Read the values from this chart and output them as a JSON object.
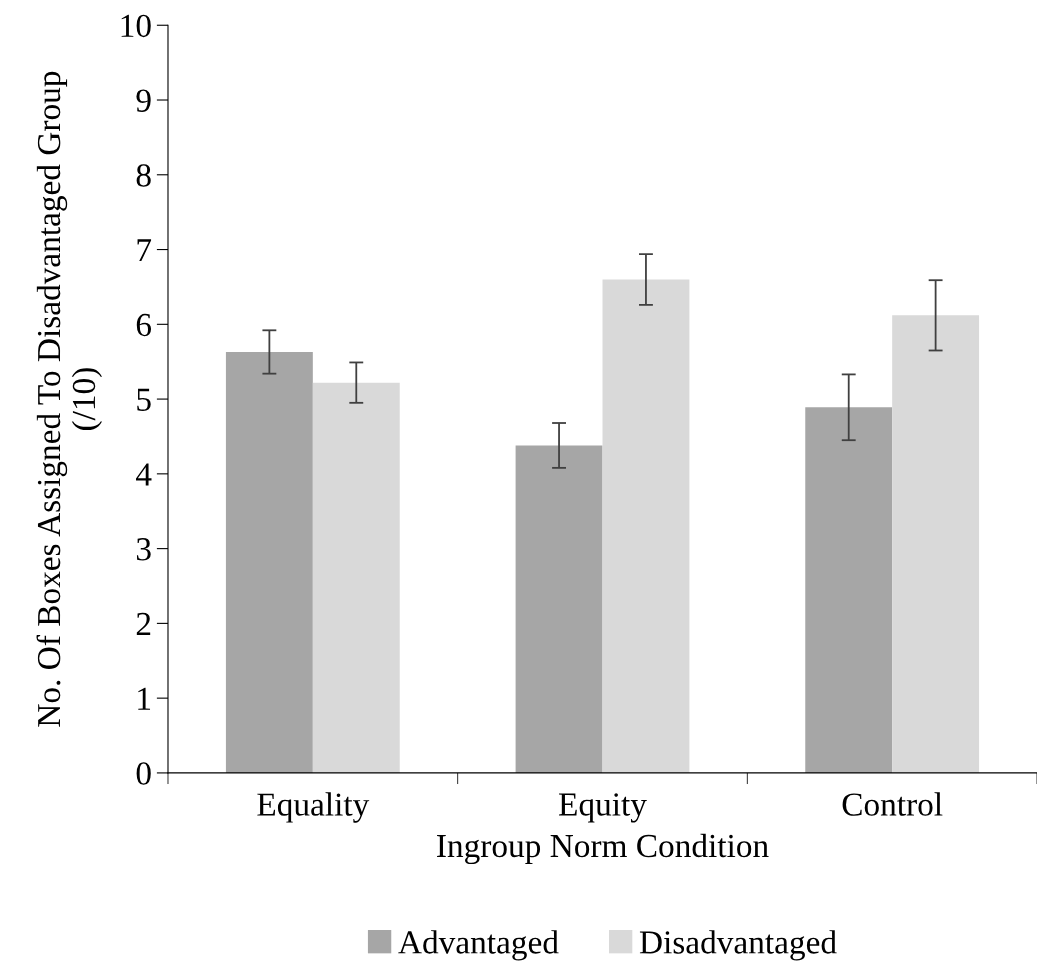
{
  "chart_data": {
    "type": "bar",
    "xlabel": "Ingroup Norm Condition",
    "ylabel": "No. Of Boxes Assigned To Disadvantaged Group\n(/10)",
    "categories": [
      "Equality",
      "Equity",
      "Control"
    ],
    "series": [
      {
        "name": "Advantaged",
        "color": "#a6a6a6",
        "values": [
          5.63,
          4.38,
          4.89
        ],
        "errors": [
          0.29,
          0.3,
          0.44
        ]
      },
      {
        "name": "Disadvantaged",
        "color": "#d9d9d9",
        "values": [
          5.22,
          6.6,
          6.12
        ],
        "errors": [
          0.27,
          0.34,
          0.47
        ]
      }
    ],
    "ylim": [
      0,
      10
    ],
    "yticks": [
      0,
      1,
      2,
      3,
      4,
      5,
      6,
      7,
      8,
      9,
      10
    ],
    "grid": false,
    "legend": "bottom"
  }
}
